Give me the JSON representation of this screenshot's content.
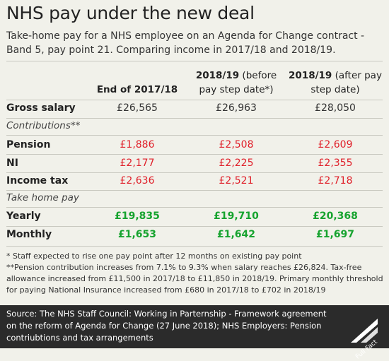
{
  "title": "NHS pay under the new deal",
  "subtitle": "Take-home pay for a NHS employee on an Agenda for Change contract - Band 5, pay point 21. Comparing income in 2017/18 and 2018/19.",
  "columns": [
    {
      "bold": "End of 2017/18",
      "rest": ""
    },
    {
      "bold": "2018/19",
      "rest": " (before pay step date*)"
    },
    {
      "bold": "2018/19",
      "rest": " (after pay step date)"
    }
  ],
  "rows": {
    "gross": {
      "label": "Gross salary",
      "values": [
        "£26,565",
        "£26,963",
        "£28,050"
      ]
    },
    "contributions_header": "Contributions**",
    "pension": {
      "label": "Pension",
      "values": [
        "£1,886",
        "£2,508",
        "£2,609"
      ]
    },
    "ni": {
      "label": "NI",
      "values": [
        "£2,177",
        "£2,225",
        "£2,355"
      ]
    },
    "income_tax": {
      "label": "Income tax",
      "values": [
        "£2,636",
        "£2,521",
        "£2,718"
      ]
    },
    "take_home_header": "Take home pay",
    "yearly": {
      "label": "Yearly",
      "values": [
        "£19,835",
        "£19,710",
        "£20,368"
      ]
    },
    "monthly": {
      "label": "Monthly",
      "values": [
        "£1,653",
        "£1,642",
        "£1,697"
      ]
    }
  },
  "notes": [
    "* Staff expected to rise one pay point after 12 months on existing pay point",
    "**Pension contribution increases from 7.1% to 9.3% when salary reaches £26,824. Tax-free allowance increased from £11,500 in 2017/18 to £11,850 in 2018/19. Primary monthly threshold for paying National Insurance increased from £680 in 2017/18 to £702 in 2018/19"
  ],
  "source": "Source: The NHS Staff Council: Working in Parternship - Framework agreement on the reform of Agenda for Change (27 June 2018); NHS Employers: Pension contriubtions and tax arrangements",
  "logo": "Full Fact",
  "colors": {
    "background": "#f1f1ea",
    "red": "#e0202a",
    "green": "#16a32e",
    "source_bg": "#2b2b2b"
  }
}
